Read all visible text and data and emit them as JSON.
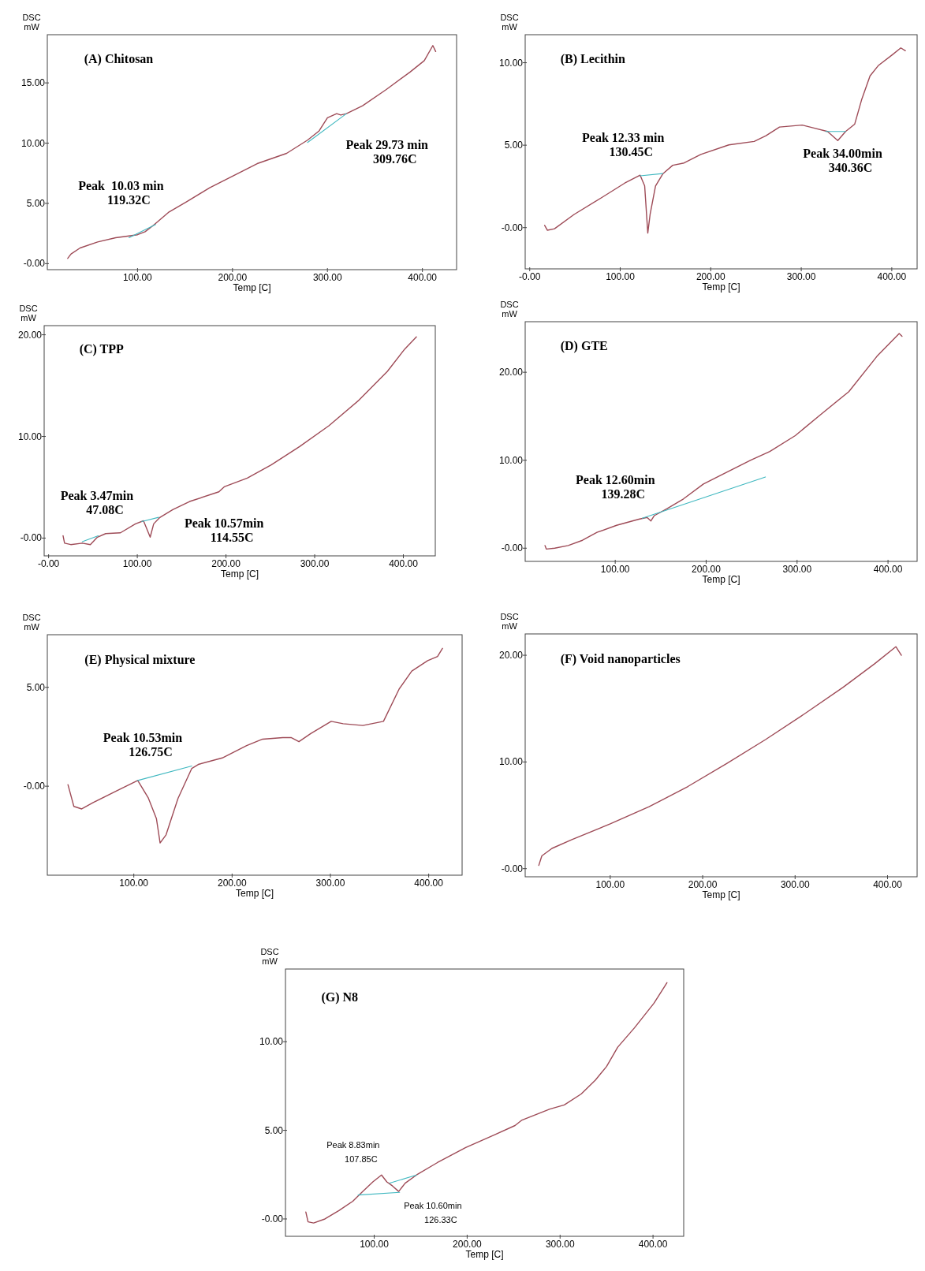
{
  "chart_data": [
    {
      "type": "line",
      "title": "(A) Chitosan",
      "xlabel": "Temp [C]",
      "ylabel": "DSC\nmW",
      "xlim": [
        5,
        436
      ],
      "ylim": [
        -0.5,
        19
      ],
      "xticks": [
        {
          "value": 100,
          "label": "100.00"
        },
        {
          "value": 200,
          "label": "200.00"
        },
        {
          "value": 300,
          "label": "300.00"
        },
        {
          "value": 400,
          "label": "400.00"
        }
      ],
      "yticks": [
        {
          "value": 0,
          "label": "-0.00"
        },
        {
          "value": 5,
          "label": "5.00"
        },
        {
          "value": 10,
          "label": "10.00"
        },
        {
          "value": 15,
          "label": "15.00"
        }
      ],
      "series": [
        {
          "color": "#9e4b57",
          "x": [
            26.5,
            30,
            39.5,
            58,
            77,
            91,
            100,
            108,
            117,
            132.5,
            151,
            176,
            201,
            226,
            257,
            279,
            291,
            300,
            309.76,
            314,
            320,
            337,
            362,
            387,
            402,
            411,
            414
          ],
          "values": [
            0.44,
            0.8,
            1.3,
            1.8,
            2.15,
            2.3,
            2.4,
            2.65,
            3.2,
            4.25,
            5.1,
            6.3,
            7.3,
            8.3,
            9.15,
            10.25,
            11,
            12.1,
            12.45,
            12.33,
            12.45,
            13.1,
            14.45,
            15.9,
            16.85,
            18.1,
            17.6
          ]
        },
        {
          "color": "#40b8c0",
          "x": [
            91,
            119
          ],
          "values": [
            2.15,
            3.25
          ]
        },
        {
          "color": "#40b8c0",
          "x": [
            279,
            320
          ],
          "values": [
            10.05,
            12.45
          ]
        }
      ],
      "annotations": [
        "Peak  10.03 min\n119.32C",
        "Peak 29.73 min\n309.76C"
      ]
    },
    {
      "type": "line",
      "title": "(B) Lecithin",
      "xlabel": "Temp [C]",
      "ylabel": "DSC\nmW",
      "xlim": [
        -5,
        428
      ],
      "ylim": [
        -2.5,
        11.7
      ],
      "xticks": [
        {
          "value": 0,
          "label": "-0.00"
        },
        {
          "value": 100,
          "label": "100.00"
        },
        {
          "value": 200,
          "label": "200.00"
        },
        {
          "value": 300,
          "label": "300.00"
        },
        {
          "value": 400,
          "label": "400.00"
        }
      ],
      "yticks": [
        {
          "value": 0,
          "label": "-0.00"
        },
        {
          "value": 5,
          "label": "5.00"
        },
        {
          "value": 10,
          "label": "10.00"
        }
      ],
      "series": [
        {
          "color": "#9e4b57",
          "x": [
            16.5,
            19.6,
            27.4,
            49,
            80,
            105,
            122,
            127,
            130.45,
            133,
            139,
            147,
            158,
            170.5,
            189,
            220,
            248,
            261,
            276,
            301,
            314,
            329,
            340.36,
            349,
            359,
            366.6,
            376,
            385,
            401,
            410,
            415
          ],
          "values": [
            0.14,
            -0.16,
            -0.07,
            0.8,
            1.84,
            2.7,
            3.18,
            2.53,
            -0.33,
            0.8,
            2.53,
            3.26,
            3.78,
            3.92,
            4.44,
            5.02,
            5.23,
            5.57,
            6.1,
            6.22,
            6.04,
            5.83,
            5.28,
            5.83,
            6.27,
            7.74,
            9.2,
            9.82,
            10.5,
            10.9,
            10.73
          ]
        },
        {
          "color": "#40b8c0",
          "x": [
            122,
            147
          ],
          "values": [
            3.14,
            3.28
          ]
        },
        {
          "color": "#40b8c0",
          "x": [
            327,
            349
          ],
          "values": [
            5.83,
            5.83
          ]
        }
      ],
      "annotations": [
        "Peak 12.33 min\n130.45C",
        "Peak 34.00min\n340.36C"
      ]
    },
    {
      "type": "line",
      "title": "(C) TPP",
      "xlabel": "Temp [C]",
      "ylabel": "DSC\nmW",
      "xlim": [
        -5,
        436
      ],
      "ylim": [
        -1.75,
        20.9
      ],
      "xticks": [
        {
          "value": 0,
          "label": "-0.00"
        },
        {
          "value": 100,
          "label": "100.00"
        },
        {
          "value": 200,
          "label": "200.00"
        },
        {
          "value": 300,
          "label": "300.00"
        },
        {
          "value": 400,
          "label": "400.00"
        }
      ],
      "yticks": [
        {
          "value": 0,
          "label": "-0.00"
        },
        {
          "value": 10,
          "label": "10.00"
        },
        {
          "value": 20,
          "label": "20.00"
        }
      ],
      "series": [
        {
          "color": "#9e4b57",
          "x": [
            16.3,
            18,
            25,
            38,
            47.08,
            55,
            64.4,
            81,
            98,
            107,
            114.55,
            118.5,
            125,
            140,
            159,
            192,
            198,
            224,
            251,
            283,
            316,
            349,
            382,
            401.6,
            414.7
          ],
          "values": [
            0.23,
            -0.5,
            -0.64,
            -0.5,
            -0.64,
            0.09,
            0.44,
            0.52,
            1.4,
            1.7,
            0.09,
            1.4,
            2,
            2.8,
            3.6,
            4.55,
            5.04,
            5.9,
            7.2,
            9,
            11.05,
            13.5,
            16.4,
            18.6,
            19.8
          ]
        },
        {
          "color": "#40b8c0",
          "x": [
            38,
            56
          ],
          "values": [
            -0.35,
            0.23
          ]
        },
        {
          "color": "#40b8c0",
          "x": [
            105,
            124
          ],
          "values": [
            1.63,
            2.04
          ]
        }
      ],
      "annotations": [
        "Peak 3.47min\n47.08C",
        "Peak 10.57min\n114.55C"
      ]
    },
    {
      "type": "line",
      "title": "(D) GTE",
      "xlabel": "Temp [C]",
      "ylabel": "DSC\nmW",
      "xlim": [
        1,
        432
      ],
      "ylim": [
        -1.5,
        25.75
      ],
      "xticks": [
        {
          "value": 100,
          "label": "100.00"
        },
        {
          "value": 200,
          "label": "200.00"
        },
        {
          "value": 300,
          "label": "300.00"
        },
        {
          "value": 400,
          "label": "400.00"
        }
      ],
      "yticks": [
        {
          "value": 0,
          "label": "-0.00"
        },
        {
          "value": 10,
          "label": "10.00"
        },
        {
          "value": 20,
          "label": "20.00"
        }
      ],
      "series": [
        {
          "color": "#9e4b57",
          "x": [
            22.8,
            24.3,
            33.5,
            48.3,
            64,
            80,
            101.5,
            126,
            135,
            139.28,
            143,
            157,
            175,
            197,
            218,
            249,
            270,
            298,
            326,
            356.9,
            387.7,
            412.3,
            415.4
          ],
          "values": [
            0.3,
            -0.1,
            0,
            0.3,
            0.9,
            1.8,
            2.6,
            3.3,
            3.5,
            3.1,
            3.7,
            4.5,
            5.6,
            7.3,
            8.4,
            10,
            11,
            12.8,
            15.2,
            17.8,
            21.8,
            24.4,
            24.1
          ]
        },
        {
          "color": "#40b8c0",
          "x": [
            129.8,
            265.2
          ],
          "values": [
            3.4,
            8.1
          ]
        }
      ],
      "annotations": [
        "Peak 12.60min\n139.28C"
      ]
    },
    {
      "type": "line",
      "title": "(E) Physical mixture",
      "xlabel": "Temp [C]",
      "ylabel": "DSC\nmW",
      "xlim": [
        12,
        434
      ],
      "ylim": [
        -4.5,
        7.66
      ],
      "xticks": [
        {
          "value": 100,
          "label": "100.00"
        },
        {
          "value": 200,
          "label": "200.00"
        },
        {
          "value": 300,
          "label": "300.00"
        },
        {
          "value": 400,
          "label": "400.00"
        }
      ],
      "yticks": [
        {
          "value": 0,
          "label": "-0.00"
        },
        {
          "value": 5,
          "label": "5.00"
        }
      ],
      "series": [
        {
          "color": "#9e4b57",
          "x": [
            33,
            39,
            47,
            59,
            84,
            104,
            114.8,
            123,
            126.75,
            132.8,
            145,
            159,
            165.6,
            190,
            214.8,
            231,
            251.6,
            260,
            268,
            280,
            300.8,
            313,
            333,
            354,
            370,
            382.8,
            399,
            409,
            414
          ],
          "values": [
            0.08,
            -1.02,
            -1.15,
            -0.82,
            -0.2,
            0.29,
            -0.6,
            -1.64,
            -2.87,
            -2.46,
            -0.61,
            0.9,
            1.1,
            1.43,
            2.05,
            2.38,
            2.46,
            2.46,
            2.25,
            2.66,
            3.28,
            3.16,
            3.07,
            3.28,
            4.92,
            5.82,
            6.35,
            6.56,
            6.97
          ]
        },
        {
          "color": "#40b8c0",
          "x": [
            104,
            159
          ],
          "values": [
            0.29,
            1.02
          ]
        }
      ],
      "annotations": [
        "Peak 10.53min\n126.75C"
      ]
    },
    {
      "type": "line",
      "title": "(F) Void nanoparticles",
      "xlabel": "Temp [C]",
      "ylabel": "DSC\nmW",
      "xlim": [
        8,
        432
      ],
      "ylim": [
        -0.76,
        22
      ],
      "xticks": [
        {
          "value": 100,
          "label": "100.00"
        },
        {
          "value": 200,
          "label": "200.00"
        },
        {
          "value": 300,
          "label": "300.00"
        },
        {
          "value": 400,
          "label": "400.00"
        }
      ],
      "yticks": [
        {
          "value": 0,
          "label": "-0.00"
        },
        {
          "value": 10,
          "label": "10.00"
        },
        {
          "value": 20,
          "label": "20.00"
        }
      ],
      "series": [
        {
          "color": "#9e4b57",
          "x": [
            22.7,
            26,
            37,
            58,
            100,
            142,
            184,
            226,
            268,
            310,
            352,
            386,
            409,
            415
          ],
          "values": [
            0.3,
            1.2,
            1.9,
            2.7,
            4.2,
            5.8,
            7.7,
            9.85,
            12.1,
            14.5,
            17,
            19.2,
            20.8,
            20
          ]
        }
      ]
    },
    {
      "type": "line",
      "title": "(G) N8",
      "xlabel": "Temp [C]",
      "ylabel": "DSC\nmW",
      "xlim": [
        4.5,
        433
      ],
      "ylim": [
        -0.98,
        14.1
      ],
      "xticks": [
        {
          "value": 100,
          "label": "100.00"
        },
        {
          "value": 200,
          "label": "200.00"
        },
        {
          "value": 300,
          "label": "300.00"
        },
        {
          "value": 400,
          "label": "400.00"
        }
      ],
      "yticks": [
        {
          "value": 0,
          "label": "-0.00"
        },
        {
          "value": 5,
          "label": "5.00"
        },
        {
          "value": 10,
          "label": "10.00"
        }
      ],
      "series": [
        {
          "color": "#9e4b57",
          "x": [
            26.4,
            28.8,
            34.8,
            47,
            62,
            77,
            86,
            98.5,
            107.85,
            113.6,
            119.7,
            126.33,
            133.3,
            145.5,
            168,
            198.5,
            228.8,
            251.5,
            259,
            289,
            304.5,
            322.7,
            337.9,
            350,
            362,
            380,
            401,
            415
          ],
          "values": [
            0.39,
            -0.16,
            -0.23,
            0,
            0.47,
            1,
            1.47,
            2.09,
            2.48,
            2.09,
            1.86,
            1.55,
            2.02,
            2.48,
            3.18,
            4.03,
            4.73,
            5.27,
            5.58,
            6.2,
            6.43,
            7.05,
            7.83,
            8.6,
            9.69,
            10.78,
            12.17,
            13.33
          ]
        },
        {
          "color": "#40b8c0",
          "x": [
            82.7,
            127.3
          ],
          "values": [
            1.35,
            1.5
          ]
        },
        {
          "color": "#40b8c0",
          "x": [
            116.7,
            145.5
          ],
          "values": [
            2.02,
            2.48
          ]
        }
      ],
      "annotations": [
        "Peak 8.83min\n107.85C",
        "Peak 10.60min\n126.33C"
      ]
    }
  ]
}
